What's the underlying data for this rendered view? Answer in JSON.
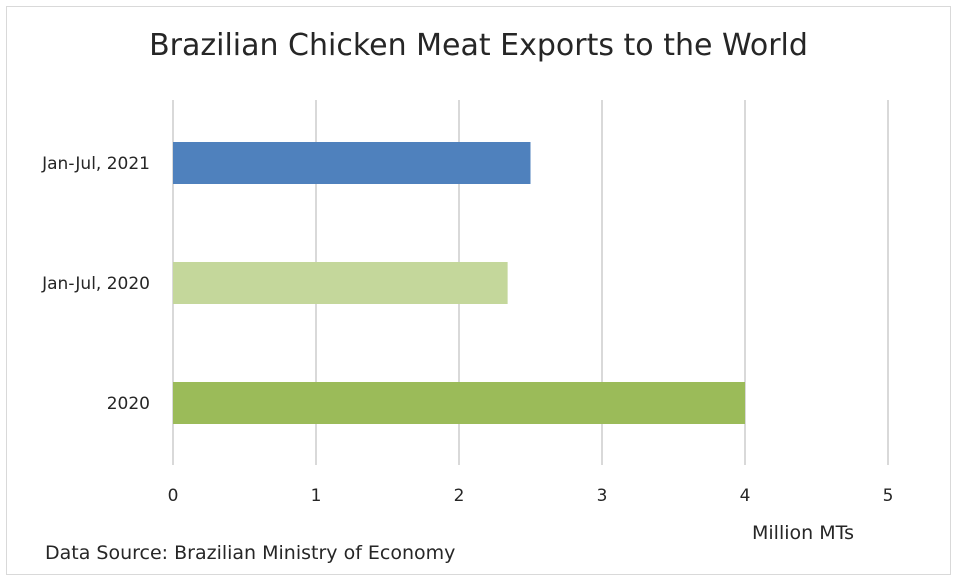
{
  "chart_data": {
    "type": "bar",
    "orientation": "horizontal",
    "title": "Brazilian Chicken Meat Exports to the World",
    "categories": [
      "Jan-Jul, 2021",
      "Jan-Jul, 2020",
      "2020"
    ],
    "values": [
      2.5,
      2.34,
      4.0
    ],
    "colors": [
      "#4f81bd",
      "#c4d79b",
      "#9bbb59"
    ],
    "xlim": [
      0,
      5
    ],
    "xticks": [
      "0",
      "1",
      "2",
      "3",
      "4",
      "5"
    ],
    "xlabel": "Million MTs",
    "ylabel": "",
    "grid": true,
    "legend": "none"
  },
  "source_note": "Data Source: Brazilian Ministry of Economy"
}
